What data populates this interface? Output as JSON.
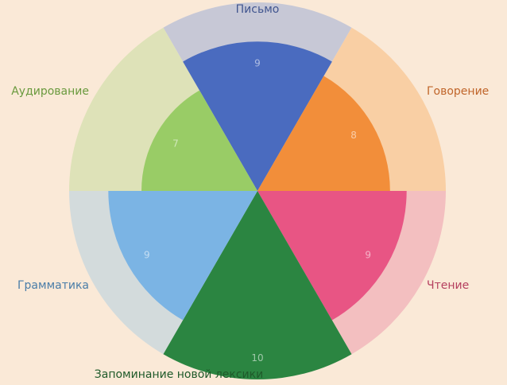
{
  "chart_data": {
    "type": "polar-bar",
    "max_value": 10,
    "categories": [
      {
        "name": "Письмо",
        "value": 9,
        "color": "#4a6bbf",
        "bg_color": "#c7c8d6",
        "label_color": "#41558f"
      },
      {
        "name": "Говорение",
        "value": 8,
        "color": "#f28e3a",
        "bg_color": "#f9cfa4",
        "label_color": "#c0652a"
      },
      {
        "name": "Чтение",
        "value": 9,
        "color": "#e85584",
        "bg_color": "#f3bfc0",
        "label_color": "#b5405f"
      },
      {
        "name": "Запоминание новой лексики",
        "value": 10,
        "color": "#2b8541",
        "bg_color": "#c9dcbf",
        "label_color": "#1f5a2a"
      },
      {
        "name": "Грамматика",
        "value": 9,
        "color": "#7bb4e4",
        "bg_color": "#d3dbdc",
        "label_color": "#4a7da8"
      },
      {
        "name": "Аудирование",
        "value": 7,
        "color": "#99cc66",
        "bg_color": "#dee2b8",
        "label_color": "#6a9a3e"
      }
    ],
    "value_labels": [
      "9",
      "8",
      "9",
      "10",
      "9",
      "7"
    ]
  }
}
